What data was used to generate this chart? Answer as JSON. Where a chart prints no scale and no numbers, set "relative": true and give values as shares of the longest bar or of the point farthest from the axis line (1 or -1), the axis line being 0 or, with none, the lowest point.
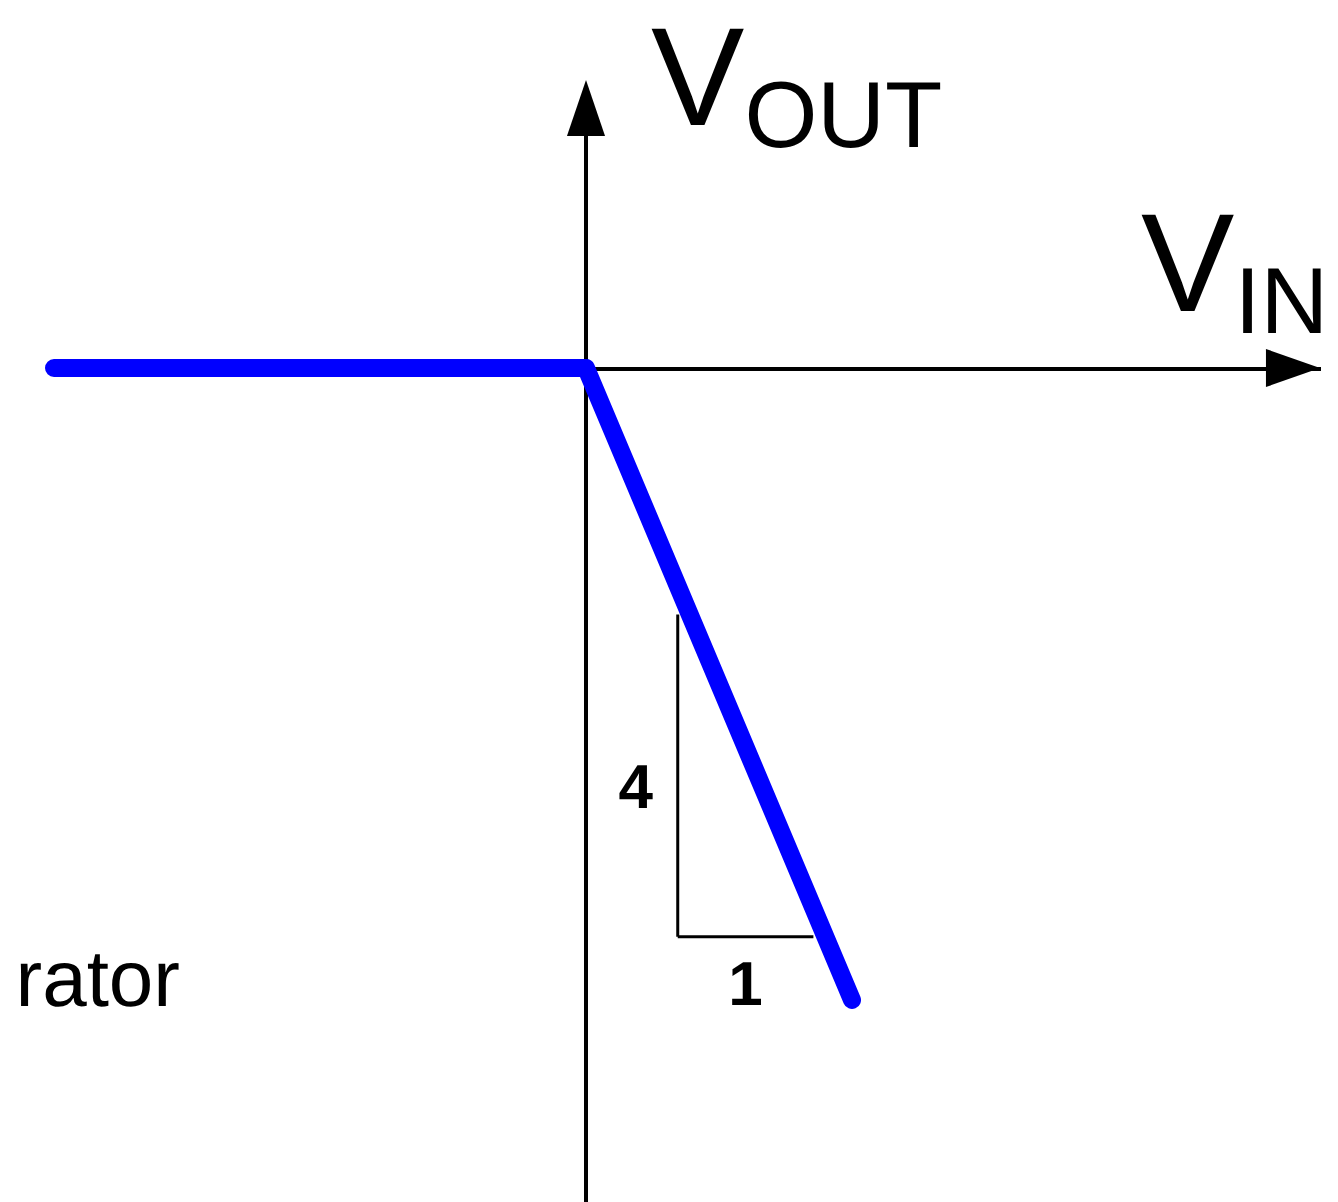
{
  "chart_data": {
    "type": "line",
    "xlabel": "V$_{IN}$",
    "ylabel": "V$_{OUT}$",
    "annotations": [
      "rator",
      "4",
      "1"
    ],
    "relative": true,
    "categories": [
      null,
      null,
      null,
      null
    ],
    "series": [
      {
        "color": "#0000ff",
        "values": [
          0,
          0,
          0,
          -1
        ]
      }
    ]
  }
}
